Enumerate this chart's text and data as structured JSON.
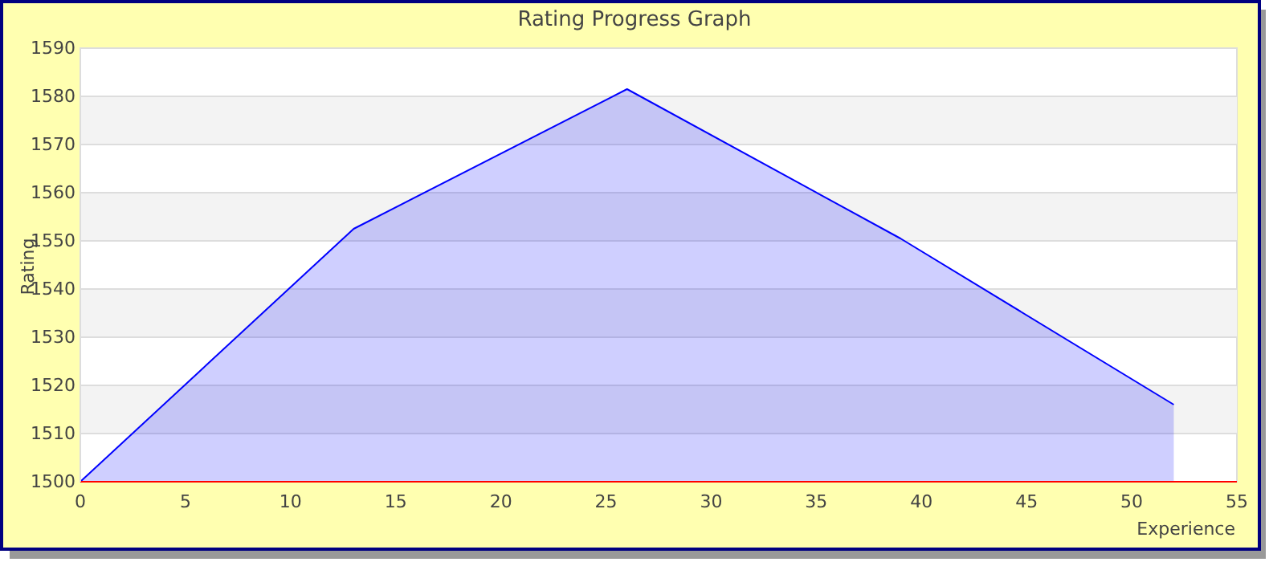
{
  "chart_data": {
    "type": "area",
    "title": "Rating Progress Graph",
    "xlabel": "Experience",
    "ylabel": "Rating",
    "x": [
      0,
      13,
      26,
      39,
      52
    ],
    "series": [
      {
        "color": "#0000ff",
        "values": [
          1500,
          1552.5,
          1581.5,
          1550.5,
          1516
        ]
      }
    ],
    "xlim": [
      0,
      55
    ],
    "xticks": [
      0,
      5,
      10,
      15,
      20,
      25,
      30,
      35,
      40,
      45,
      50,
      55
    ],
    "ylim": [
      1500,
      1590
    ],
    "yticks": [
      1500,
      1510,
      1520,
      1530,
      1540,
      1550,
      1560,
      1570,
      1580,
      1590
    ],
    "grid": "y",
    "marker": "none",
    "line_style": "solid"
  }
}
